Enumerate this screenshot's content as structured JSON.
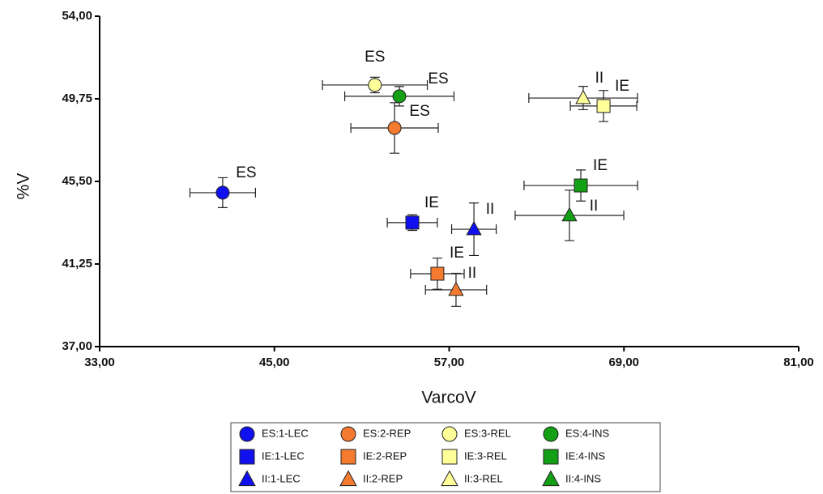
{
  "chart_data": {
    "type": "scatter",
    "xlabel": "VarcoV",
    "ylabel": "%V",
    "xlim": [
      33,
      81
    ],
    "ylim": [
      37,
      54
    ],
    "xticks": [
      {
        "value": 33,
        "label": "33,00"
      },
      {
        "value": 45,
        "label": "45,00"
      },
      {
        "value": 57,
        "label": "57,00"
      },
      {
        "value": 69,
        "label": "69,00"
      },
      {
        "value": 81,
        "label": "81,00"
      }
    ],
    "yticks": [
      {
        "value": 37,
        "label": "37,00"
      },
      {
        "value": 41.25,
        "label": "41,25"
      },
      {
        "value": 45.5,
        "label": "45,50"
      },
      {
        "value": 49.75,
        "label": "49,75"
      },
      {
        "value": 54,
        "label": "54,00"
      }
    ],
    "legend": "bottom",
    "grid": false,
    "series": [
      {
        "name": "ES:1-LEC",
        "marker": "circle",
        "color": "#1010f0",
        "x": [
          41.45
        ],
        "y": [
          44.92
        ],
        "xerr": [
          2.25
        ],
        "yerr": [
          0.77
        ],
        "labels": [
          "ES"
        ]
      },
      {
        "name": "ES:2-REP",
        "marker": "circle",
        "color": "#f47a30",
        "x": [
          53.25
        ],
        "y": [
          48.25
        ],
        "xerr": [
          3.0
        ],
        "yerr": [
          1.3
        ],
        "labels": [
          "ES"
        ]
      },
      {
        "name": "ES:3-REL",
        "marker": "circle",
        "color": "#ffff99",
        "x": [
          51.9
        ],
        "y": [
          50.46
        ],
        "xerr": [
          3.6
        ],
        "yerr": [
          0.4
        ],
        "labels": [
          "ES"
        ]
      },
      {
        "name": "ES:4-INS",
        "marker": "circle",
        "color": "#14a014",
        "x": [
          53.58
        ],
        "y": [
          49.88
        ],
        "xerr": [
          3.75
        ],
        "yerr": [
          0.5
        ],
        "labels": [
          "ES"
        ]
      },
      {
        "name": "IE:1-LEC",
        "marker": "square",
        "color": "#1010f0",
        "x": [
          54.47
        ],
        "y": [
          43.38
        ],
        "xerr": [
          1.72
        ],
        "yerr": [
          0.4
        ],
        "labels": [
          "IE"
        ]
      },
      {
        "name": "IE:2-REP",
        "marker": "square",
        "color": "#f47a30",
        "x": [
          56.19
        ],
        "y": [
          40.75
        ],
        "xerr": [
          1.84
        ],
        "yerr": [
          0.8
        ],
        "labels": [
          "IE"
        ]
      },
      {
        "name": "IE:3-REL",
        "marker": "square",
        "color": "#ffff99",
        "x": [
          67.6
        ],
        "y": [
          49.38
        ],
        "xerr": [
          2.28
        ],
        "yerr": [
          0.8
        ],
        "labels": [
          "IE"
        ]
      },
      {
        "name": "IE:4-INS",
        "marker": "square",
        "color": "#14a014",
        "x": [
          66.04
        ],
        "y": [
          45.29
        ],
        "xerr": [
          3.9
        ],
        "yerr": [
          0.8
        ],
        "labels": [
          "IE"
        ]
      },
      {
        "name": "II:1-LEC",
        "marker": "triangle",
        "color": "#1010f0",
        "x": [
          58.7
        ],
        "y": [
          43.04
        ],
        "xerr": [
          1.53
        ],
        "yerr": [
          1.35
        ],
        "labels": [
          "II"
        ]
      },
      {
        "name": "II:2-REP",
        "marker": "triangle",
        "color": "#f47a30",
        "x": [
          57.47
        ],
        "y": [
          39.92
        ],
        "xerr": [
          2.1
        ],
        "yerr": [
          0.85
        ],
        "labels": [
          "II"
        ]
      },
      {
        "name": "II:3-REL",
        "marker": "triangle",
        "color": "#ffff99",
        "x": [
          66.2
        ],
        "y": [
          49.79
        ],
        "xerr": [
          3.73
        ],
        "yerr": [
          0.6
        ],
        "labels": [
          "II"
        ]
      },
      {
        "name": "II:4-INS",
        "marker": "triangle",
        "color": "#14a014",
        "x": [
          65.26
        ],
        "y": [
          43.75
        ],
        "xerr": [
          3.73
        ],
        "yerr": [
          1.3
        ],
        "labels": [
          "II"
        ]
      }
    ]
  }
}
